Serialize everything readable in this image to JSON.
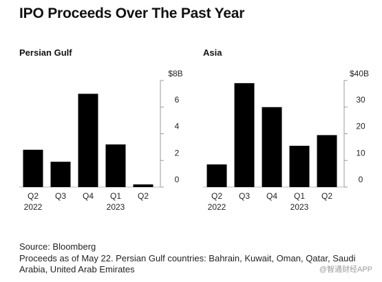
{
  "title": "IPO Proceeds Over The Past Year",
  "chart_data": [
    {
      "type": "bar",
      "title": "Persian Gulf",
      "unit_label": "$8B",
      "categories": [
        "Q2 2022",
        "Q3",
        "Q4",
        "Q1 2023",
        "Q2"
      ],
      "category_lines": [
        [
          "Q2",
          "2022"
        ],
        [
          "Q3",
          ""
        ],
        [
          "Q4",
          ""
        ],
        [
          "Q1",
          "2023"
        ],
        [
          "Q2",
          ""
        ]
      ],
      "values": [
        2.8,
        1.9,
        7.0,
        3.2,
        0.2
      ],
      "ylim": [
        0,
        8
      ],
      "yticks": [
        0,
        2,
        4,
        6
      ],
      "ytick_labels": [
        "0",
        "2",
        "4",
        "6"
      ],
      "grid": false,
      "bar_color": "#000000"
    },
    {
      "type": "bar",
      "title": "Asia",
      "unit_label": "$40B",
      "categories": [
        "Q2 2022",
        "Q3",
        "Q4",
        "Q1 2023",
        "Q2"
      ],
      "category_lines": [
        [
          "Q2",
          "2022"
        ],
        [
          "Q3",
          ""
        ],
        [
          "Q4",
          ""
        ],
        [
          "Q1",
          "2023"
        ],
        [
          "Q2",
          ""
        ]
      ],
      "values": [
        8.5,
        39,
        30,
        15.5,
        19.5
      ],
      "ylim": [
        0,
        40
      ],
      "yticks": [
        0,
        10,
        20,
        30
      ],
      "ytick_labels": [
        "0",
        "10",
        "20",
        "30"
      ],
      "grid": false,
      "bar_color": "#000000"
    }
  ],
  "source": "Source: Bloomberg",
  "footnote": "Proceeds as of May 22. Persian Gulf countries: Bahrain, Kuwait, Oman, Qatar, Saudi Arabia, United Arab Emirates",
  "watermark": "@智通财经APP"
}
